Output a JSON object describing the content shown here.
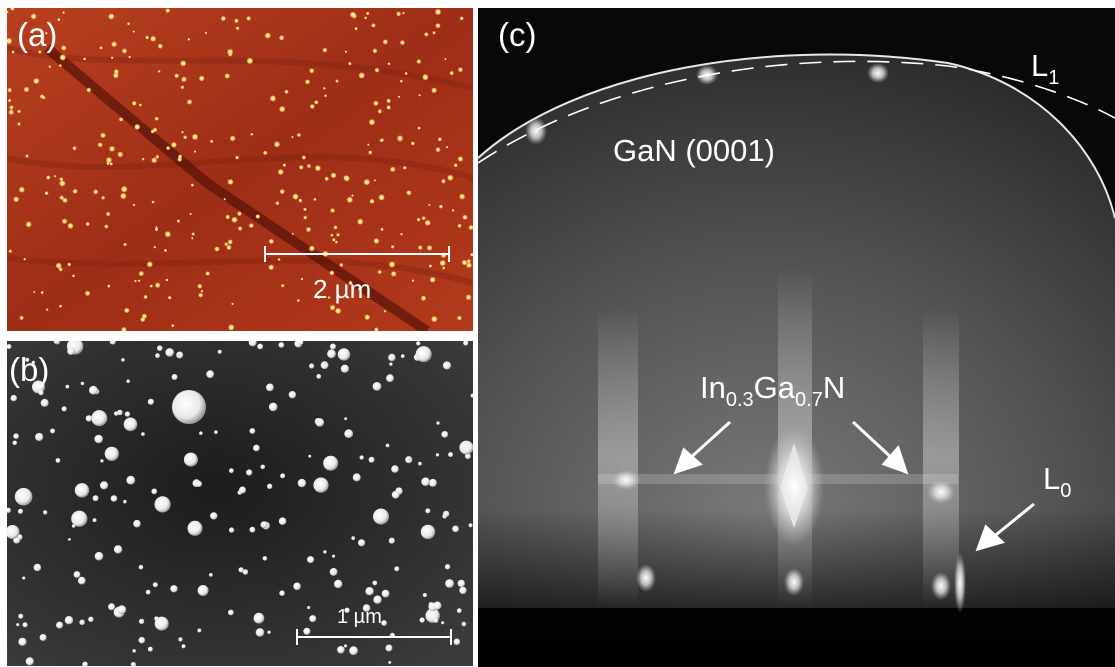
{
  "panels": {
    "a": {
      "label": "(a)",
      "scale_bar": "2 µm"
    },
    "b": {
      "label": "(b)",
      "scale_bar": "1 µm"
    },
    "c": {
      "label": "(c)",
      "annotations": {
        "gan": "GaN (0001)",
        "l1_main": "L",
        "l1_sub": "1",
        "l0_main": "L",
        "l0_sub": "0",
        "ingan_in": "In",
        "ingan_in_sub": "0.3",
        "ingan_ga": "Ga",
        "ingan_ga_sub": "0.7",
        "ingan_n": "N"
      }
    }
  },
  "colors": {
    "afm_background": "#a8321c",
    "afm_dots": "#fff2a0",
    "sem_background": "#2e2e2e",
    "rheed_background": "#0a0a0a",
    "annotation": "#ffffff"
  }
}
